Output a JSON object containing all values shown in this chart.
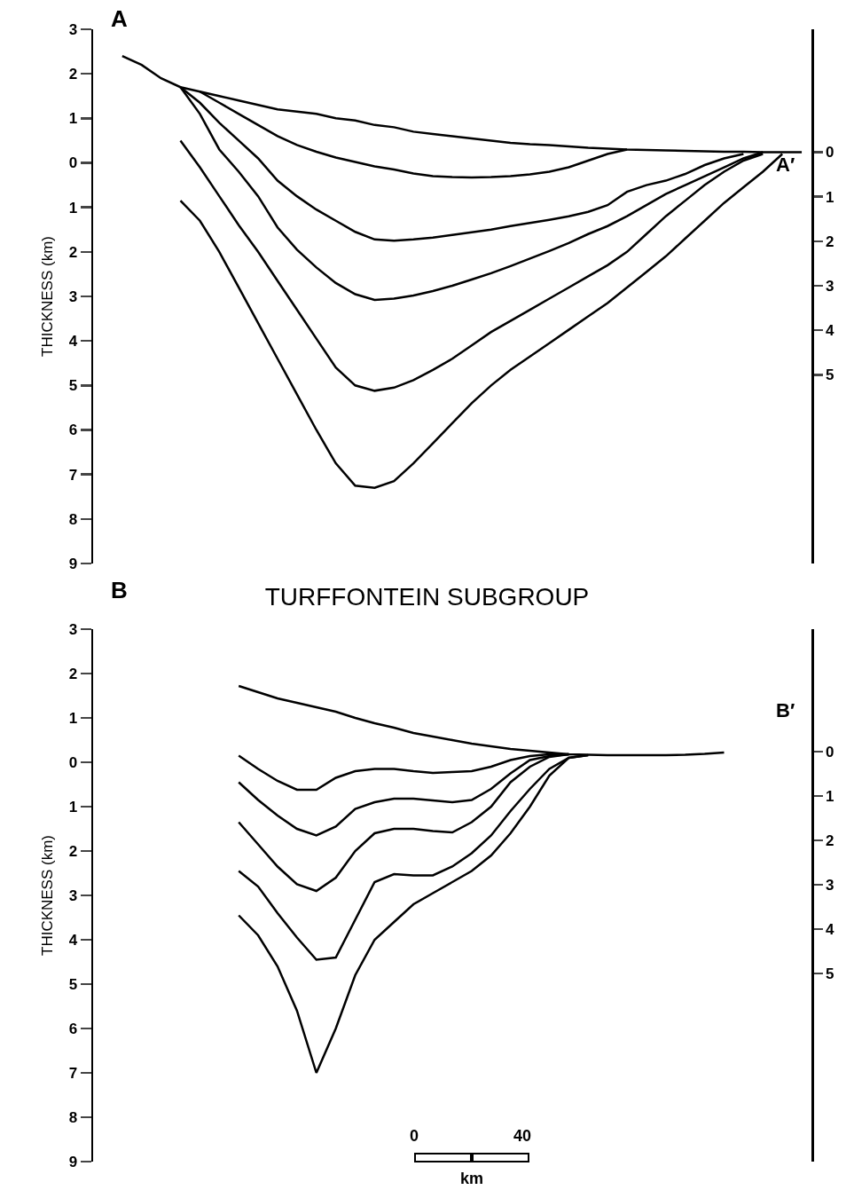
{
  "chart_data": [
    {
      "type": "line",
      "categories": [
        null,
        null,
        null,
        null,
        null,
        null,
        null,
        null,
        null,
        null,
        null,
        null,
        null,
        null,
        null,
        null,
        null,
        null,
        null,
        null,
        null,
        null,
        null,
        null,
        null,
        null,
        null,
        null,
        null,
        null,
        null,
        null,
        null,
        null,
        null,
        null,
        null
      ],
      "series": [
        {
          "color": "#000000",
          "values": [
            null,
            2.4,
            2.2,
            1.9,
            1.7,
            1.6,
            1.5,
            1.4,
            1.3,
            1.2,
            1.15,
            1.1,
            1.0,
            0.95,
            0.85,
            0.8,
            0.7,
            0.65,
            0.6,
            0.55,
            0.5,
            0.45,
            0.42,
            0.4,
            0.37,
            0.34,
            0.32,
            0.3,
            0.29,
            0.28,
            0.27,
            0.26,
            0.25,
            0.25,
            0.24,
            0.24,
            0.24
          ]
        },
        {
          "color": "#000000",
          "values": [
            null,
            null,
            null,
            null,
            null,
            1.6,
            1.35,
            1.1,
            0.85,
            0.6,
            0.4,
            0.25,
            0.12,
            0.02,
            -0.08,
            -0.15,
            -0.24,
            -0.3,
            -0.32,
            -0.33,
            -0.32,
            -0.3,
            -0.26,
            -0.2,
            -0.1,
            0.05,
            0.2,
            0.3,
            null,
            null,
            null,
            null,
            null,
            null,
            null,
            null,
            null
          ]
        },
        {
          "color": "#000000",
          "values": [
            null,
            null,
            null,
            null,
            1.7,
            1.35,
            0.9,
            0.5,
            0.1,
            -0.4,
            -0.75,
            -1.05,
            -1.3,
            -1.55,
            -1.72,
            -1.75,
            -1.72,
            -1.68,
            -1.62,
            -1.56,
            -1.5,
            -1.42,
            -1.35,
            -1.28,
            -1.2,
            -1.1,
            -0.95,
            -0.65,
            -0.5,
            -0.4,
            -0.25,
            -0.05,
            0.1,
            0.2,
            null,
            null,
            null
          ]
        },
        {
          "color": "#000000",
          "values": [
            null,
            null,
            null,
            null,
            1.7,
            1.1,
            0.3,
            -0.2,
            -0.75,
            -1.45,
            -1.95,
            -2.35,
            -2.7,
            -2.95,
            -3.08,
            -3.05,
            -2.98,
            -2.88,
            -2.76,
            -2.62,
            -2.48,
            -2.32,
            -2.15,
            -1.98,
            -1.8,
            -1.6,
            -1.42,
            -1.2,
            -0.95,
            -0.7,
            -0.5,
            -0.3,
            -0.1,
            0.1,
            0.24,
            null,
            null
          ]
        },
        {
          "color": "#000000",
          "values": [
            null,
            null,
            null,
            null,
            0.5,
            -0.1,
            -0.75,
            -1.4,
            -2.0,
            -2.65,
            -3.3,
            -3.95,
            -4.6,
            -5.0,
            -5.12,
            -5.05,
            -4.88,
            -4.65,
            -4.4,
            -4.1,
            -3.8,
            -3.55,
            -3.3,
            -3.05,
            -2.8,
            -2.55,
            -2.3,
            -2.0,
            -1.6,
            -1.2,
            -0.85,
            -0.5,
            -0.2,
            0.05,
            0.2,
            null,
            null
          ]
        },
        {
          "color": "#000000",
          "values": [
            null,
            null,
            null,
            null,
            -0.85,
            -1.3,
            -2.0,
            -2.8,
            -3.6,
            -4.4,
            -5.2,
            -6.0,
            -6.75,
            -7.25,
            -7.3,
            -7.15,
            -6.75,
            -6.3,
            -5.85,
            -5.4,
            -5.0,
            -4.65,
            -4.35,
            -4.05,
            -3.75,
            -3.45,
            -3.15,
            -2.8,
            -2.45,
            -2.1,
            -1.7,
            -1.3,
            -0.9,
            -0.55,
            -0.2,
            0.2,
            null
          ]
        }
      ],
      "ylabel": "THICKNESS (km)",
      "ylim": [
        -9,
        3
      ],
      "yticks": [
        {
          "value": -9,
          "label": "9"
        },
        {
          "value": -8,
          "label": "8"
        },
        {
          "value": -7,
          "label": "7"
        },
        {
          "value": -6,
          "label": "6"
        },
        {
          "value": -5,
          "label": "5"
        },
        {
          "value": -4,
          "label": "4"
        },
        {
          "value": -3,
          "label": "3"
        },
        {
          "value": -2,
          "label": "2"
        },
        {
          "value": -1,
          "label": "1"
        },
        0,
        1,
        2,
        3
      ],
      "y2lim": [
        -9.24,
        2.76
      ],
      "y2ticks": [
        {
          "value": -5,
          "label": "5"
        },
        {
          "value": -4,
          "label": "4"
        },
        {
          "value": -3,
          "label": "3"
        },
        {
          "value": -2,
          "label": "2"
        },
        {
          "value": -1,
          "label": "1"
        },
        0
      ],
      "annotations": [
        "A",
        "A′"
      ],
      "tick_labels": "y",
      "grid": false,
      "marker": "none",
      "line_style": "solid"
    },
    {
      "type": "line",
      "title": "TURFFONTEIN SUBGROUP",
      "categories": [
        null,
        null,
        null,
        null,
        null,
        null,
        null,
        null,
        null,
        null,
        null,
        null,
        null,
        null,
        null,
        null,
        null,
        null,
        null,
        null,
        null,
        null,
        null,
        null,
        null,
        null,
        null,
        null,
        null,
        null,
        null,
        null,
        null,
        null,
        null,
        null,
        null
      ],
      "series": [
        {
          "color": "#000000",
          "values": [
            null,
            null,
            null,
            null,
            null,
            null,
            null,
            1.72,
            1.58,
            1.44,
            1.34,
            1.24,
            1.14,
            1.0,
            0.88,
            0.78,
            0.66,
            0.58,
            0.5,
            0.42,
            0.36,
            0.3,
            0.26,
            0.22,
            0.18,
            0.17,
            0.16,
            0.16,
            0.16,
            0.16,
            0.17,
            0.19,
            0.22,
            null,
            null,
            null,
            null
          ]
        },
        {
          "color": "#000000",
          "values": [
            null,
            null,
            null,
            null,
            null,
            null,
            null,
            0.15,
            -0.15,
            -0.42,
            -0.62,
            -0.62,
            -0.35,
            -0.2,
            -0.15,
            -0.15,
            -0.2,
            -0.24,
            -0.22,
            -0.2,
            -0.1,
            0.05,
            0.14,
            0.18,
            0.18,
            null,
            null,
            null,
            null,
            null,
            null,
            null,
            null,
            null,
            null,
            null,
            null
          ]
        },
        {
          "color": "#000000",
          "values": [
            null,
            null,
            null,
            null,
            null,
            null,
            null,
            -0.45,
            -0.85,
            -1.2,
            -1.5,
            -1.65,
            -1.45,
            -1.05,
            -0.9,
            -0.82,
            -0.82,
            -0.86,
            -0.9,
            -0.85,
            -0.6,
            -0.25,
            0.05,
            0.14,
            0.18,
            null,
            null,
            null,
            null,
            null,
            null,
            null,
            null,
            null,
            null,
            null,
            null
          ]
        },
        {
          "color": "#000000",
          "values": [
            null,
            null,
            null,
            null,
            null,
            null,
            null,
            -1.35,
            -1.85,
            -2.35,
            -2.75,
            -2.9,
            -2.6,
            -2.0,
            -1.6,
            -1.5,
            -1.5,
            -1.55,
            -1.58,
            -1.35,
            -1.0,
            -0.45,
            -0.1,
            0.12,
            0.18,
            null,
            null,
            null,
            null,
            null,
            null,
            null,
            null,
            null,
            null,
            null,
            null
          ]
        },
        {
          "color": "#000000",
          "values": [
            null,
            null,
            null,
            null,
            null,
            null,
            null,
            -2.45,
            -2.8,
            -3.4,
            -3.95,
            -4.45,
            -4.4,
            -3.55,
            -2.7,
            -2.52,
            -2.55,
            -2.55,
            -2.35,
            -2.05,
            -1.65,
            -1.1,
            -0.6,
            -0.15,
            0.1,
            0.16,
            null,
            null,
            null,
            null,
            null,
            null,
            null,
            null,
            null,
            null,
            null
          ]
        },
        {
          "color": "#000000",
          "values": [
            null,
            null,
            null,
            null,
            null,
            null,
            null,
            -3.45,
            -3.9,
            -4.6,
            -5.6,
            -7.0,
            -6.0,
            -4.8,
            -4.0,
            -3.6,
            -3.2,
            -2.95,
            -2.7,
            -2.45,
            -2.1,
            -1.6,
            -1.0,
            -0.3,
            0.1,
            0.16,
            null,
            null,
            null,
            null,
            null,
            null,
            null,
            null,
            null,
            null,
            null
          ]
        }
      ],
      "ylabel": "THICKNESS (km)",
      "ylim": [
        -9,
        3
      ],
      "yticks": [
        {
          "value": -9,
          "label": "9"
        },
        {
          "value": -8,
          "label": "8"
        },
        {
          "value": -7,
          "label": "7"
        },
        {
          "value": -6,
          "label": "6"
        },
        {
          "value": -5,
          "label": "5"
        },
        {
          "value": -4,
          "label": "4"
        },
        {
          "value": -3,
          "label": "3"
        },
        {
          "value": -2,
          "label": "2"
        },
        {
          "value": -1,
          "label": "1"
        },
        0,
        1,
        2,
        3
      ],
      "y2lim": [
        -9.24,
        2.76
      ],
      "y2ticks": [
        {
          "value": -5,
          "label": "5"
        },
        {
          "value": -4,
          "label": "4"
        },
        {
          "value": -3,
          "label": "3"
        },
        {
          "value": -2,
          "label": "2"
        },
        {
          "value": -1,
          "label": "1"
        },
        0
      ],
      "annotations": [
        "B",
        "B′",
        "0",
        "40",
        "km"
      ],
      "tick_labels": "y",
      "grid": false,
      "marker": "none",
      "line_style": "solid"
    }
  ]
}
